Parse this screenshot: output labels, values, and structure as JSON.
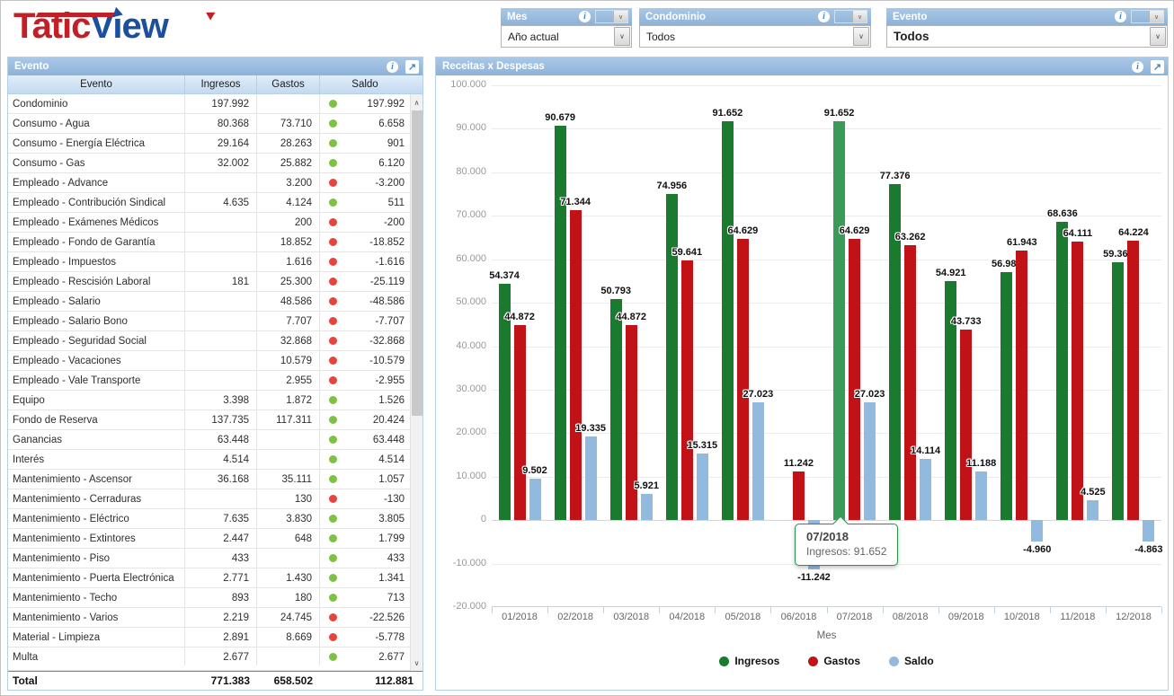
{
  "logo": {
    "text_red": "Tatic",
    "text_blue": "View"
  },
  "icons": {
    "info": "i",
    "expand": "↗",
    "chevron_down": "∨",
    "scroll_up": "∧",
    "scroll_down": "∨"
  },
  "filters": {
    "mes": {
      "title": "Mes",
      "value": "Año actual"
    },
    "condominio": {
      "title": "Condominio",
      "value": "Todos"
    },
    "evento": {
      "title": "Evento",
      "value": "Todos"
    }
  },
  "table": {
    "title": "Evento",
    "columns": [
      "Evento",
      "Ingresos",
      "Gastos",
      "Saldo"
    ],
    "rows": [
      {
        "evento": "Condominio",
        "ingresos": "197.992",
        "gastos": "",
        "dot": "green",
        "saldo": "197.992"
      },
      {
        "evento": "Consumo - Agua",
        "ingresos": "80.368",
        "gastos": "73.710",
        "dot": "green",
        "saldo": "6.658"
      },
      {
        "evento": "Consumo - Energía Eléctrica",
        "ingresos": "29.164",
        "gastos": "28.263",
        "dot": "green",
        "saldo": "901"
      },
      {
        "evento": "Consumo - Gas",
        "ingresos": "32.002",
        "gastos": "25.882",
        "dot": "green",
        "saldo": "6.120"
      },
      {
        "evento": "Empleado - Advance",
        "ingresos": "",
        "gastos": "3.200",
        "dot": "red",
        "saldo": "-3.200"
      },
      {
        "evento": "Empleado - Contribución Sindical",
        "ingresos": "4.635",
        "gastos": "4.124",
        "dot": "green",
        "saldo": "511"
      },
      {
        "evento": "Empleado - Exámenes Médicos",
        "ingresos": "",
        "gastos": "200",
        "dot": "red",
        "saldo": "-200"
      },
      {
        "evento": "Empleado - Fondo de Garantía",
        "ingresos": "",
        "gastos": "18.852",
        "dot": "red",
        "saldo": "-18.852"
      },
      {
        "evento": "Empleado - Impuestos",
        "ingresos": "",
        "gastos": "1.616",
        "dot": "red",
        "saldo": "-1.616"
      },
      {
        "evento": "Empleado - Rescisión Laboral",
        "ingresos": "181",
        "gastos": "25.300",
        "dot": "red",
        "saldo": "-25.119"
      },
      {
        "evento": "Empleado - Salario",
        "ingresos": "",
        "gastos": "48.586",
        "dot": "red",
        "saldo": "-48.586"
      },
      {
        "evento": "Empleado - Salario Bono",
        "ingresos": "",
        "gastos": "7.707",
        "dot": "red",
        "saldo": "-7.707"
      },
      {
        "evento": "Empleado - Seguridad Social",
        "ingresos": "",
        "gastos": "32.868",
        "dot": "red",
        "saldo": "-32.868"
      },
      {
        "evento": "Empleado - Vacaciones",
        "ingresos": "",
        "gastos": "10.579",
        "dot": "red",
        "saldo": "-10.579"
      },
      {
        "evento": "Empleado - Vale Transporte",
        "ingresos": "",
        "gastos": "2.955",
        "dot": "red",
        "saldo": "-2.955"
      },
      {
        "evento": "Equipo",
        "ingresos": "3.398",
        "gastos": "1.872",
        "dot": "green",
        "saldo": "1.526"
      },
      {
        "evento": "Fondo de Reserva",
        "ingresos": "137.735",
        "gastos": "117.311",
        "dot": "green",
        "saldo": "20.424"
      },
      {
        "evento": "Ganancias",
        "ingresos": "63.448",
        "gastos": "",
        "dot": "green",
        "saldo": "63.448"
      },
      {
        "evento": "Interés",
        "ingresos": "4.514",
        "gastos": "",
        "dot": "green",
        "saldo": "4.514"
      },
      {
        "evento": "Mantenimiento - Ascensor",
        "ingresos": "36.168",
        "gastos": "35.111",
        "dot": "green",
        "saldo": "1.057"
      },
      {
        "evento": "Mantenimiento - Cerraduras",
        "ingresos": "",
        "gastos": "130",
        "dot": "red",
        "saldo": "-130"
      },
      {
        "evento": "Mantenimiento - Eléctrico",
        "ingresos": "7.635",
        "gastos": "3.830",
        "dot": "green",
        "saldo": "3.805"
      },
      {
        "evento": "Mantenimiento - Extintores",
        "ingresos": "2.447",
        "gastos": "648",
        "dot": "green",
        "saldo": "1.799"
      },
      {
        "evento": "Mantenimiento - Piso",
        "ingresos": "433",
        "gastos": "",
        "dot": "green",
        "saldo": "433"
      },
      {
        "evento": "Mantenimiento - Puerta Electrónica",
        "ingresos": "2.771",
        "gastos": "1.430",
        "dot": "green",
        "saldo": "1.341"
      },
      {
        "evento": "Mantenimiento - Techo",
        "ingresos": "893",
        "gastos": "180",
        "dot": "green",
        "saldo": "713"
      },
      {
        "evento": "Mantenimiento - Varios",
        "ingresos": "2.219",
        "gastos": "24.745",
        "dot": "red",
        "saldo": "-22.526"
      },
      {
        "evento": "Material - Limpieza",
        "ingresos": "2.891",
        "gastos": "8.669",
        "dot": "red",
        "saldo": "-5.778"
      },
      {
        "evento": "Multa",
        "ingresos": "2.677",
        "gastos": "",
        "dot": "green",
        "saldo": "2.677"
      }
    ],
    "total": {
      "label": "Total",
      "ingresos": "771.383",
      "gastos": "658.502",
      "saldo": "112.881"
    }
  },
  "chart_data": {
    "type": "bar",
    "title": "Receitas x Despesas",
    "categories": [
      "01/2018",
      "02/2018",
      "03/2018",
      "04/2018",
      "05/2018",
      "06/2018",
      "07/2018",
      "08/2018",
      "09/2018",
      "10/2018",
      "11/2018",
      "12/2018"
    ],
    "series": [
      {
        "name": "Ingresos",
        "color": "#1a7a2e",
        "values": [
          54374,
          90679,
          50793,
          74956,
          91652,
          null,
          91652,
          77376,
          54921,
          56983,
          68636,
          59361
        ]
      },
      {
        "name": "Gastos",
        "color": "#c11217",
        "values": [
          44872,
          71344,
          44872,
          59641,
          64629,
          11242,
          64629,
          63262,
          43733,
          61943,
          64111,
          64224
        ]
      },
      {
        "name": "Saldo",
        "color": "#92bade",
        "values": [
          9502,
          19335,
          5921,
          15315,
          27023,
          -11242,
          27023,
          14114,
          11188,
          -4960,
          4525,
          -4863
        ]
      }
    ],
    "xlabel": "Mes",
    "ylim": [
      -20000,
      100000
    ],
    "ytick_step": 10000,
    "grid": true,
    "legend_position": "bottom",
    "data_labels": true,
    "highlight": {
      "series": "Ingresos",
      "category_index": 6,
      "color": "#3a9a58"
    },
    "tooltip": {
      "title": "07/2018",
      "text": "Ingresos: 91.652"
    }
  },
  "colors": {
    "header_blue_from": "#aac8e6",
    "header_blue_to": "#8db2d8",
    "panel_border": "#b7cfe4",
    "dot_green": "#7dc242",
    "dot_red": "#e8433c",
    "tooltip_border": "#2f9150",
    "logo_red": "#c22026",
    "logo_blue": "#1c4f9e"
  }
}
